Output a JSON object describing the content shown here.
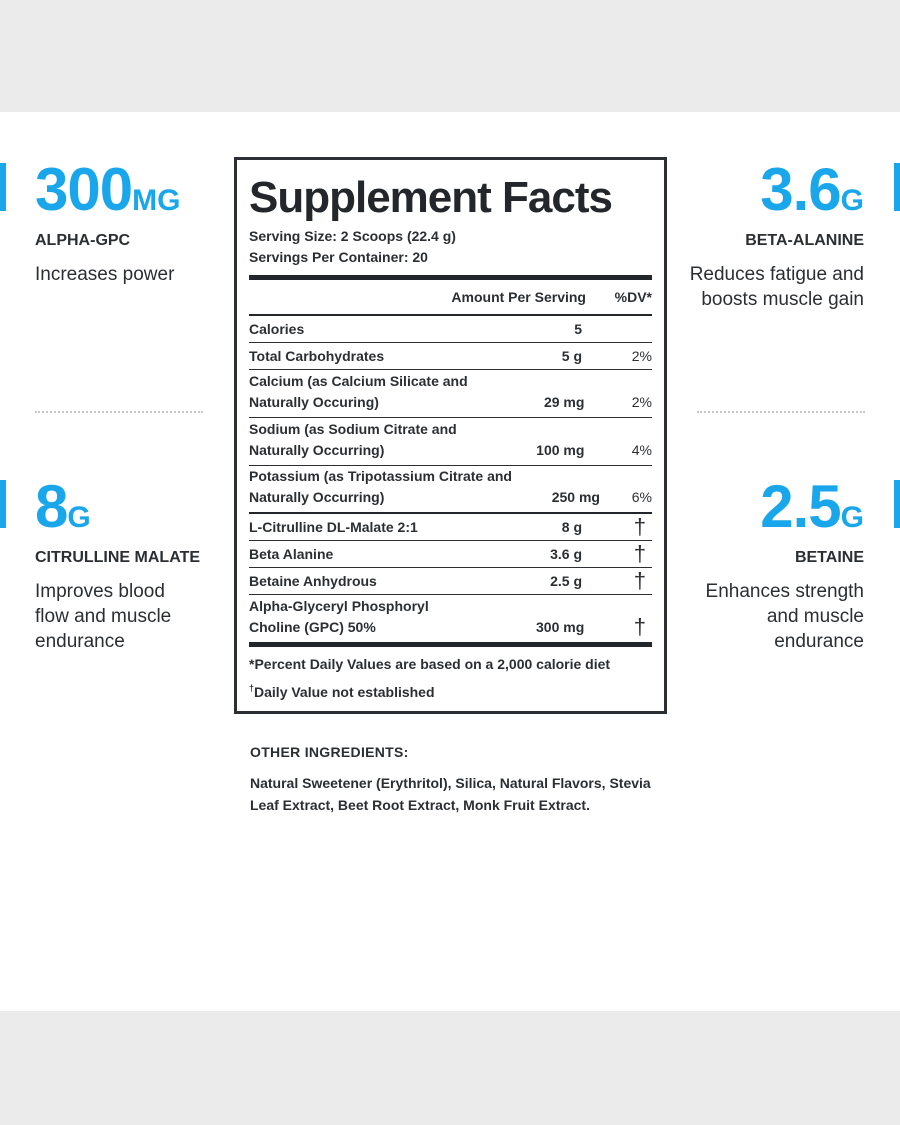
{
  "colors": {
    "accent": "#1aa6ea",
    "text": "#2b2f33",
    "band": "#ebebeb"
  },
  "highlights": {
    "alpha_gpc": {
      "amount": "300",
      "unit": "MG",
      "name": "ALPHA-GPC",
      "desc": "Increases power"
    },
    "beta_alanine": {
      "amount": "3.6",
      "unit": "G",
      "name": "BETA-ALANINE",
      "desc": "Reduces fatigue and boosts muscle gain"
    },
    "citrulline": {
      "amount": "8",
      "unit": "G",
      "name": "CITRULLINE MALATE",
      "desc": "Improves blood flow and muscle endurance"
    },
    "betaine": {
      "amount": "2.5",
      "unit": "G",
      "name": "BETAINE",
      "desc": "Enhances strength and muscle endurance"
    }
  },
  "facts": {
    "title": "Supplement Facts",
    "serving_size": "Serving Size: 2 Scoops (22.4 g)",
    "servings_per_container": "Servings Per Container: 20",
    "col_amount": "Amount Per Serving",
    "col_dv": "%DV*",
    "rows": [
      {
        "name": "Calories",
        "amount": "5",
        "dv": ""
      },
      {
        "name": "Total Carbohydrates",
        "amount": "5 g",
        "dv": "2%"
      },
      {
        "name": "Calcium (as Calcium Silicate and Naturally Occuring)",
        "amount": "29 mg",
        "dv": "2%"
      },
      {
        "name": "Sodium (as Sodium Citrate and Naturally Occurring)",
        "amount": "100 mg",
        "dv": "4%"
      },
      {
        "name": "Potassium (as Tripotassium Citrate and Naturally Occurring)",
        "amount": "250 mg",
        "dv": "6%"
      },
      {
        "name": "L-Citrulline DL-Malate 2:1",
        "amount": "8 g",
        "dv": "†"
      },
      {
        "name": "Beta Alanine",
        "amount": "3.6 g",
        "dv": "†"
      },
      {
        "name": "Betaine Anhydrous",
        "amount": "2.5 g",
        "dv": "†"
      },
      {
        "name": "Alpha-Glyceryl Phosphoryl Choline (GPC) 50%",
        "amount": "300 mg",
        "dv": "†"
      }
    ],
    "footnote_1": "*Percent Daily Values are based on a 2,000 calorie diet",
    "footnote_2_mark": "†",
    "footnote_2": "Daily Value not established"
  },
  "other_ingredients": {
    "heading": "OTHER INGREDIENTS:",
    "text": "Natural Sweetener (Erythritol), Silica, Natural Flavors, Stevia Leaf Extract, Beet Root Extract, Monk Fruit Extract."
  }
}
